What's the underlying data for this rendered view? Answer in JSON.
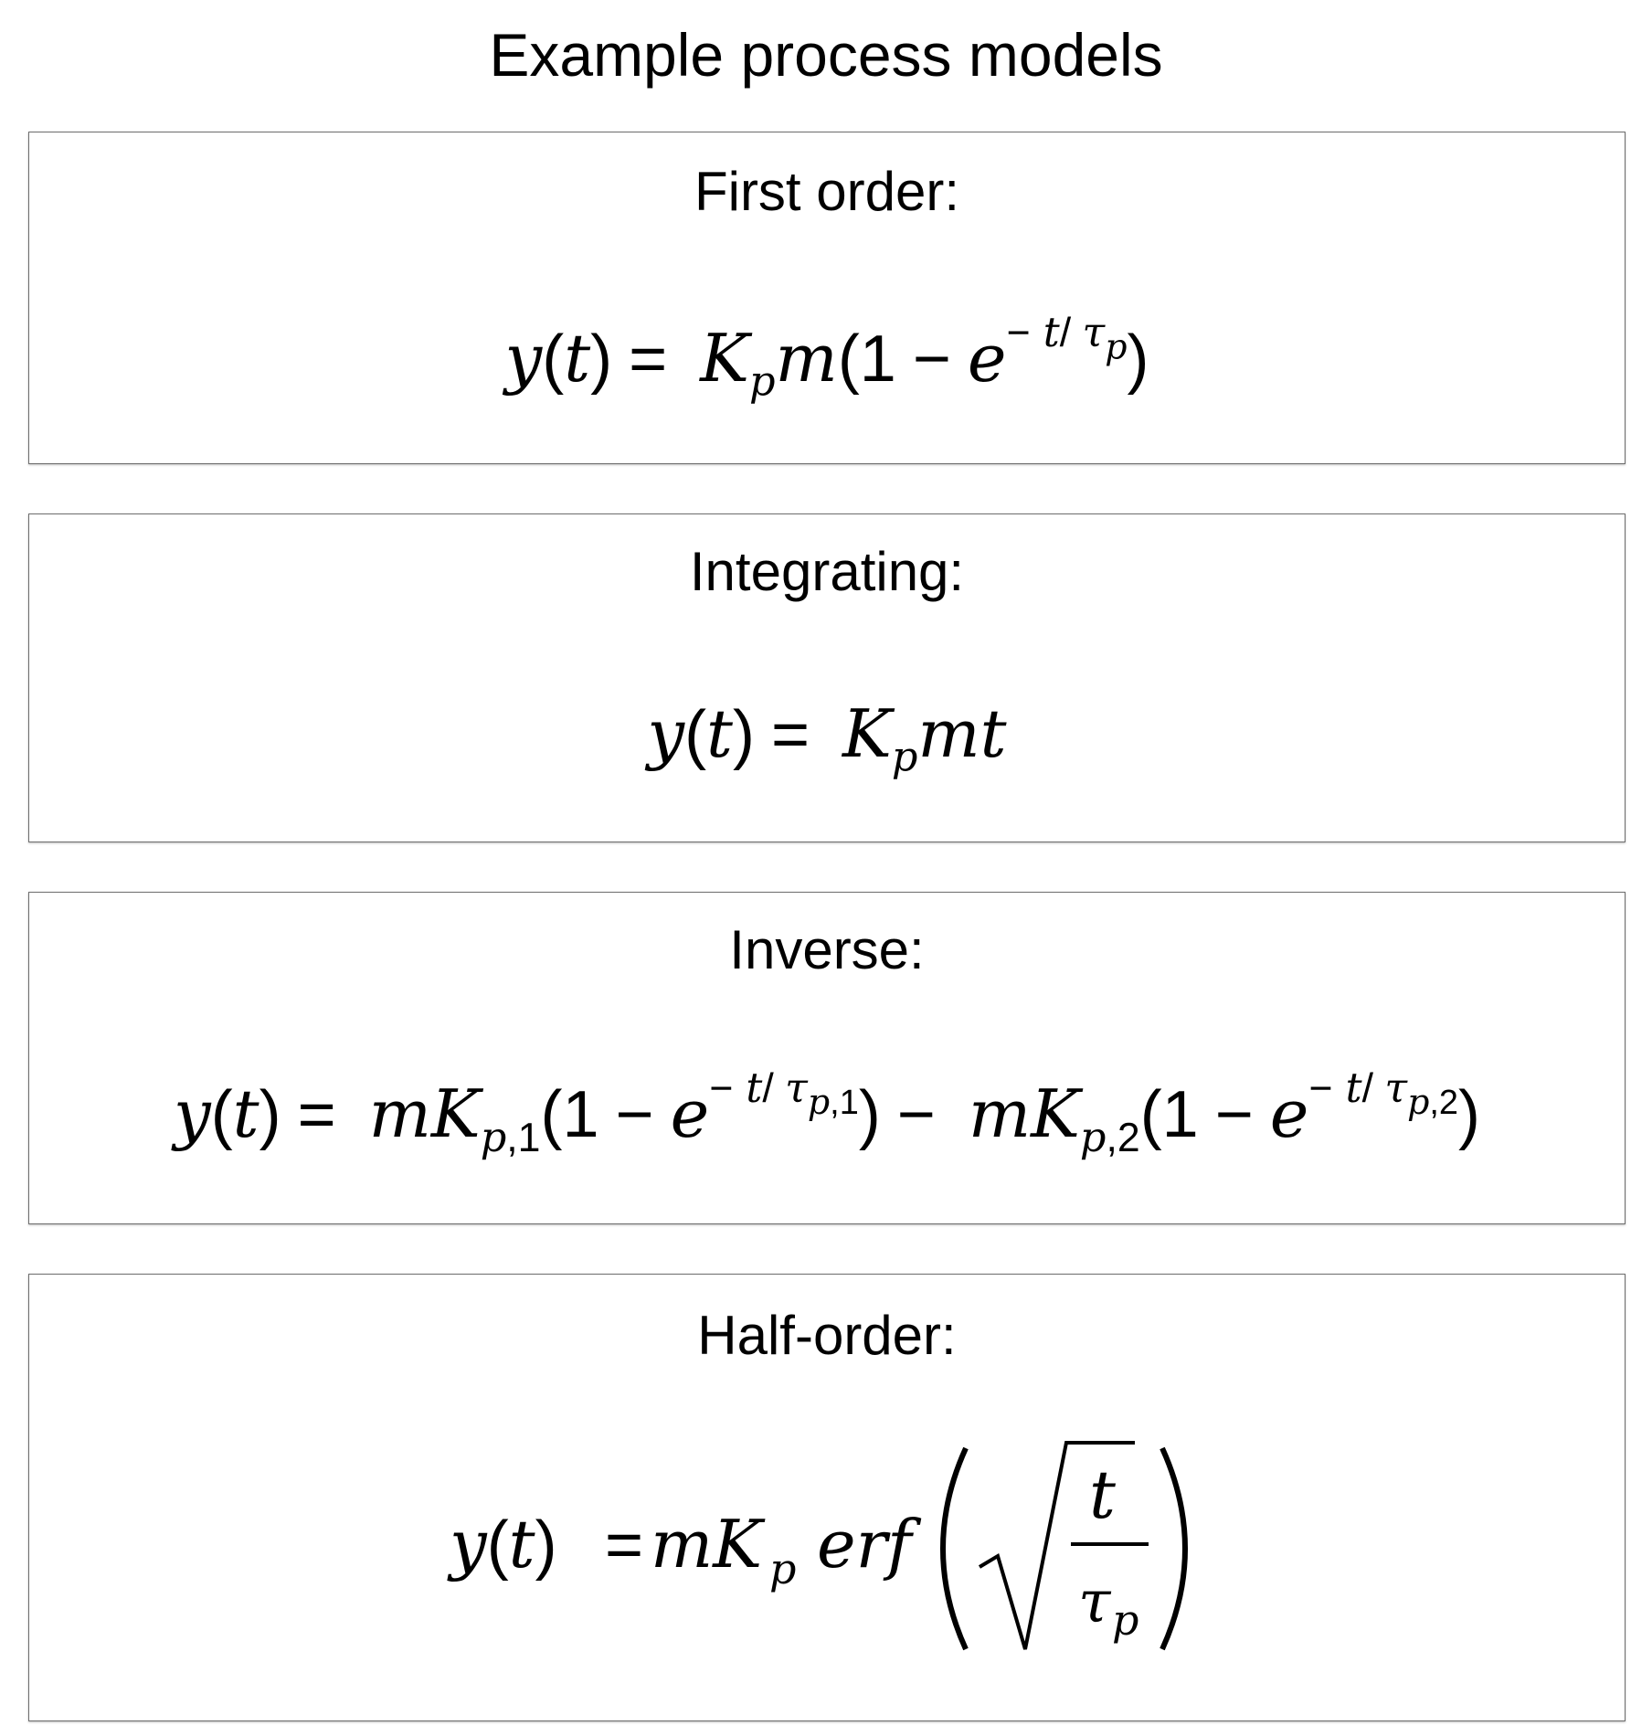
{
  "page": {
    "title": "Example process models"
  },
  "models": [
    {
      "label": "First order:",
      "formula": "y(t) = K_p m(1 − e^{−t/τ_p})"
    },
    {
      "label": "Integrating:",
      "formula": "y(t) = K_p m t"
    },
    {
      "label": "Inverse:",
      "formula": "y(t) = mK_{p,1}(1 − e^{−t/τ_{p,1}}) − mK_{p,2}(1 − e^{−t/τ_{p,2}})"
    },
    {
      "label": "Half-order:",
      "formula": "y(t) = mK_p erf(√(t/τ_p))"
    }
  ]
}
